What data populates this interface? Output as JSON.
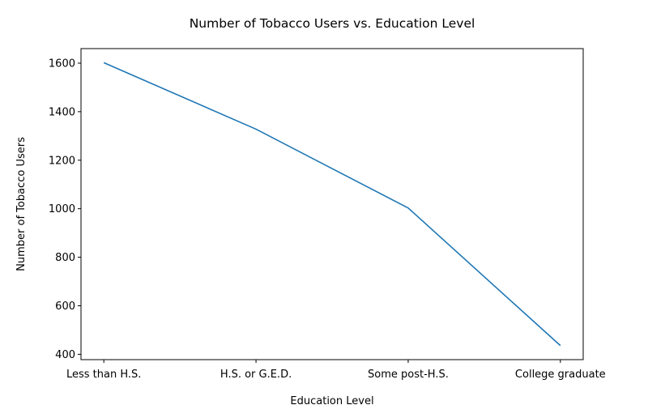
{
  "chart_data": {
    "type": "line",
    "title": "Number of Tobacco Users vs. Education Level",
    "xlabel": "Education Level",
    "ylabel": "Number of Tobacco Users",
    "categories": [
      "Less than H.S.",
      "H.S. or G.E.D.",
      "Some post-H.S.",
      "College graduate"
    ],
    "values": [
      1602,
      1328,
      1003,
      436
    ],
    "ylim": [
      378,
      1660
    ],
    "yticks": [
      400,
      600,
      800,
      1000,
      1200,
      1400,
      1600
    ],
    "grid": false,
    "line_color": "#1f77b4"
  }
}
